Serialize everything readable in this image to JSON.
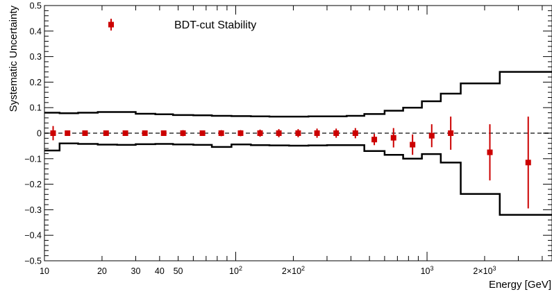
{
  "chart_data": {
    "type": "scatter",
    "xlabel": "Energy [GeV]",
    "ylabel": "Systematic Uncertainty",
    "xscale": "log",
    "xlim": [
      10,
      4500
    ],
    "ylim": [
      -0.5,
      0.5
    ],
    "grid": false,
    "legend": {
      "placement": "top-left",
      "marker_color": "#cc0000"
    },
    "x_tick_labels": [
      {
        "value": 10,
        "label": "10"
      },
      {
        "value": 20,
        "label": "20"
      },
      {
        "value": 30,
        "label": "30"
      },
      {
        "value": 40,
        "label": "40"
      },
      {
        "value": 50,
        "label": "50"
      },
      {
        "value": 100,
        "label": "10",
        "exp": "2"
      },
      {
        "value": 200,
        "label": "2×10",
        "exp": "2"
      },
      {
        "value": 1000,
        "label": "10",
        "exp": "3"
      },
      {
        "value": 2000,
        "label": "2×10",
        "exp": "3"
      }
    ],
    "y_tick_labels": [
      {
        "value": 0.5,
        "label": "0.5"
      },
      {
        "value": 0.4,
        "label": "0.4"
      },
      {
        "value": 0.3,
        "label": "0.3"
      },
      {
        "value": 0.2,
        "label": "0.2"
      },
      {
        "value": 0.1,
        "label": "0.1"
      },
      {
        "value": 0,
        "label": "0"
      },
      {
        "value": -0.1,
        "label": "−0.1"
      },
      {
        "value": -0.2,
        "label": "−0.2"
      },
      {
        "value": -0.3,
        "label": "−0.3"
      },
      {
        "value": -0.4,
        "label": "−0.4"
      },
      {
        "value": -0.5,
        "label": "−0.5"
      }
    ],
    "reference_line": {
      "y": 0,
      "style": "dashed",
      "color": "#666666"
    },
    "series": [
      {
        "name": "BDT-cut Stability",
        "color": "#cc0000",
        "marker": "square",
        "points": [
          {
            "x": 11.1,
            "y": 0.0,
            "err": 0.028
          },
          {
            "x": 13.2,
            "y": 0.0,
            "err": 0.008
          },
          {
            "x": 16.3,
            "y": 0.0,
            "err": 0.006
          },
          {
            "x": 21.0,
            "y": 0.0,
            "err": 0.01
          },
          {
            "x": 26.5,
            "y": 0.0,
            "err": 0.006
          },
          {
            "x": 33.5,
            "y": 0.0,
            "err": 0.01
          },
          {
            "x": 42.0,
            "y": 0.0,
            "err": 0.006
          },
          {
            "x": 53.0,
            "y": 0.0,
            "err": 0.012
          },
          {
            "x": 67.0,
            "y": 0.0,
            "err": 0.01
          },
          {
            "x": 84.0,
            "y": 0.0,
            "err": 0.012
          },
          {
            "x": 106.0,
            "y": 0.0,
            "err": 0.012
          },
          {
            "x": 134.0,
            "y": 0.0,
            "err": 0.014
          },
          {
            "x": 168.0,
            "y": 0.0,
            "err": 0.016
          },
          {
            "x": 212.0,
            "y": 0.0,
            "err": 0.016
          },
          {
            "x": 266.0,
            "y": 0.0,
            "err": 0.018
          },
          {
            "x": 335.0,
            "y": 0.0,
            "err": 0.018
          },
          {
            "x": 422.0,
            "y": 0.0,
            "err": 0.02
          },
          {
            "x": 530.0,
            "y": -0.025,
            "err": 0.022
          },
          {
            "x": 668.0,
            "y": -0.018,
            "err": 0.038
          },
          {
            "x": 840.0,
            "y": -0.045,
            "err": 0.04
          },
          {
            "x": 1058.0,
            "y": -0.01,
            "err": 0.045
          },
          {
            "x": 1330.0,
            "y": 0.0,
            "err": 0.065
          },
          {
            "x": 2130.0,
            "y": -0.075,
            "err": 0.11
          },
          {
            "x": 3380.0,
            "y": -0.115,
            "err": 0.18
          }
        ]
      }
    ],
    "band_upper": {
      "edges": [
        10,
        12,
        15,
        19,
        24,
        30,
        38,
        47,
        60,
        75,
        95,
        120,
        150,
        190,
        240,
        300,
        380,
        470,
        600,
        750,
        940,
        1180,
        1500,
        2400,
        4500
      ],
      "values": [
        0.08,
        0.078,
        0.08,
        0.083,
        0.083,
        0.076,
        0.074,
        0.071,
        0.07,
        0.068,
        0.067,
        0.066,
        0.065,
        0.065,
        0.066,
        0.066,
        0.068,
        0.075,
        0.088,
        0.1,
        0.125,
        0.155,
        0.195,
        0.24
      ]
    },
    "band_lower": {
      "edges": [
        10,
        12,
        15,
        19,
        24,
        30,
        38,
        47,
        60,
        75,
        95,
        120,
        150,
        190,
        240,
        300,
        380,
        470,
        600,
        750,
        940,
        1180,
        1500,
        2400,
        4500
      ],
      "values": [
        -0.068,
        -0.04,
        -0.042,
        -0.045,
        -0.046,
        -0.043,
        -0.042,
        -0.044,
        -0.046,
        -0.054,
        -0.044,
        -0.047,
        -0.048,
        -0.049,
        -0.048,
        -0.047,
        -0.047,
        -0.07,
        -0.085,
        -0.1,
        -0.082,
        -0.115,
        -0.238,
        -0.32
      ]
    }
  }
}
